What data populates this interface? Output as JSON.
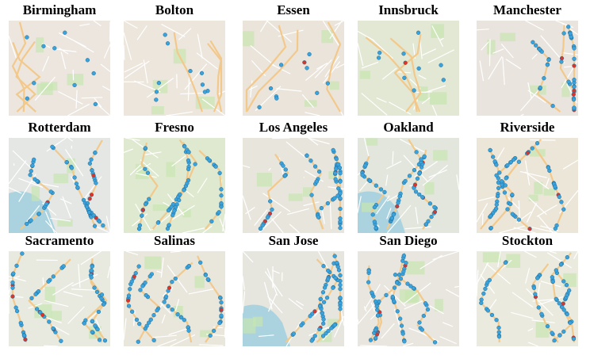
{
  "colors": {
    "marker": "#3ba3dc",
    "marker_alt": "#d9352b",
    "road_major": "#f3c98b",
    "road_minor": "#ffffff",
    "water": "#aad3df",
    "park": "#c8e6b0"
  },
  "cities": [
    {
      "name": "Birmingham",
      "base": "#ece6df",
      "style": "urban"
    },
    {
      "name": "Bolton",
      "base": "#ede6dd",
      "style": "urban"
    },
    {
      "name": "Essen",
      "base": "#eae4da",
      "style": "urban"
    },
    {
      "name": "Innsbruck",
      "base": "#e2e8d4",
      "style": "urban"
    },
    {
      "name": "Manchester",
      "base": "#e9e4dd",
      "style": "dense"
    },
    {
      "name": "Rotterdam",
      "base": "#e5e7e4",
      "style": "water"
    },
    {
      "name": "Fresno",
      "base": "#dfe9cf",
      "style": "highway"
    },
    {
      "name": "Los Angeles",
      "base": "#e8e5dc",
      "style": "highway"
    },
    {
      "name": "Oakland",
      "base": "#e2e6dc",
      "style": "water"
    },
    {
      "name": "Riverside",
      "base": "#ece6d9",
      "style": "highway"
    },
    {
      "name": "Sacramento",
      "base": "#e8e9df",
      "style": "highway"
    },
    {
      "name": "Salinas",
      "base": "#e9e6dc",
      "style": "highway"
    },
    {
      "name": "San Jose",
      "base": "#e6e6df",
      "style": "water"
    },
    {
      "name": "San Diego",
      "base": "#e8e6de",
      "style": "highway"
    },
    {
      "name": "Stockton",
      "base": "#ebeade",
      "style": "highway"
    }
  ]
}
